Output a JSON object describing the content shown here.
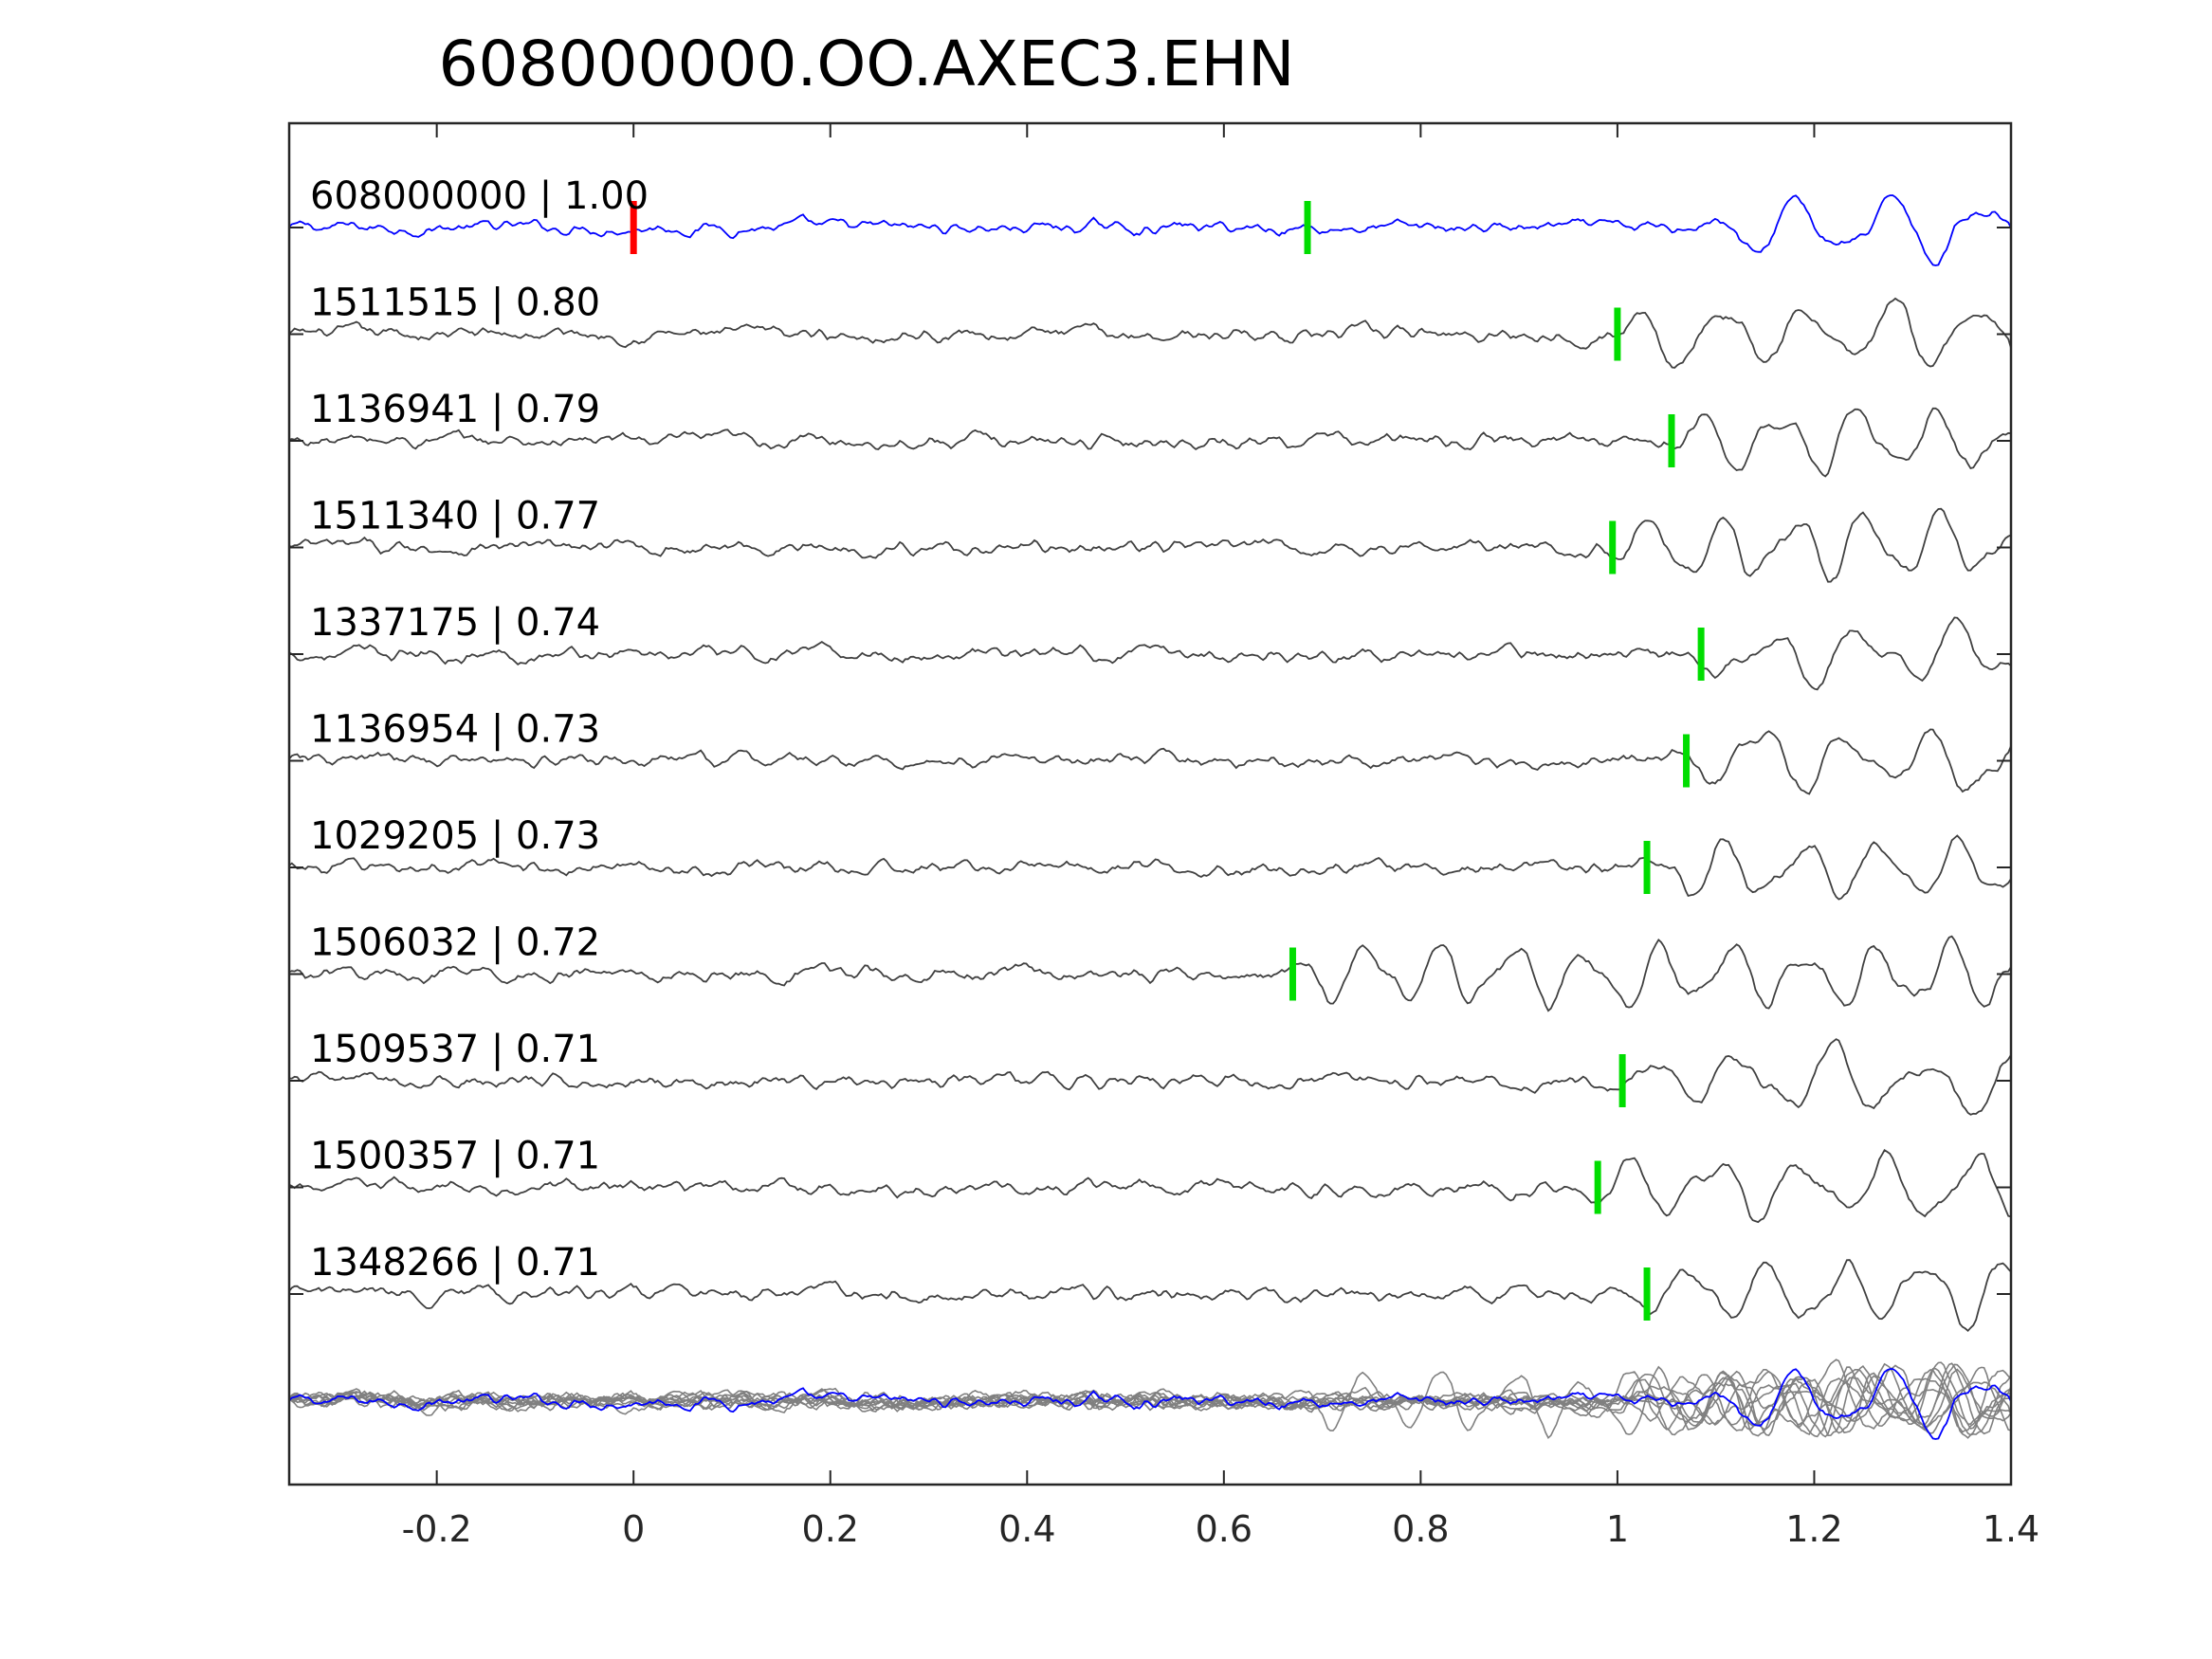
{
  "chart_data": {
    "type": "line",
    "title": "608000000.OO.AXEC3.EHN",
    "xlabel": "",
    "ylabel": "",
    "xlim": [
      -0.35,
      1.4
    ],
    "x_ticks": [
      "-0.2",
      "0",
      "0.2",
      "0.4",
      "0.6",
      "0.8",
      "1",
      "1.2",
      "1.4"
    ],
    "x_tick_values": [
      -0.2,
      0,
      0.2,
      0.4,
      0.6,
      0.8,
      1,
      1.2,
      1.4
    ],
    "grid": false,
    "legend": "none",
    "colors": {
      "template": "#0000ff",
      "trace": "#404040",
      "overlay": "#808080",
      "origin_pick": "#ff0000",
      "phase_pick": "#00dd00"
    },
    "reference_pick_time": 0,
    "template_pick_time": 0.685,
    "series": [
      {
        "label": "608000000 | 1.00",
        "pick": 0.685,
        "template": true
      },
      {
        "label": "1511515 | 0.80",
        "pick": 1.0
      },
      {
        "label": "1136941 | 0.79",
        "pick": 1.055
      },
      {
        "label": "1511340 | 0.77",
        "pick": 0.995
      },
      {
        "label": "1337175 | 0.74",
        "pick": 1.085
      },
      {
        "label": "1136954 | 0.73",
        "pick": 1.07
      },
      {
        "label": "1029205 | 0.73",
        "pick": 1.03
      },
      {
        "label": "1506032 | 0.72",
        "pick": 0.67
      },
      {
        "label": "1509537 | 0.71",
        "pick": 1.005
      },
      {
        "label": "1500357 | 0.71",
        "pick": 0.98
      },
      {
        "label": "1348266 | 0.71",
        "pick": 1.03
      }
    ]
  }
}
